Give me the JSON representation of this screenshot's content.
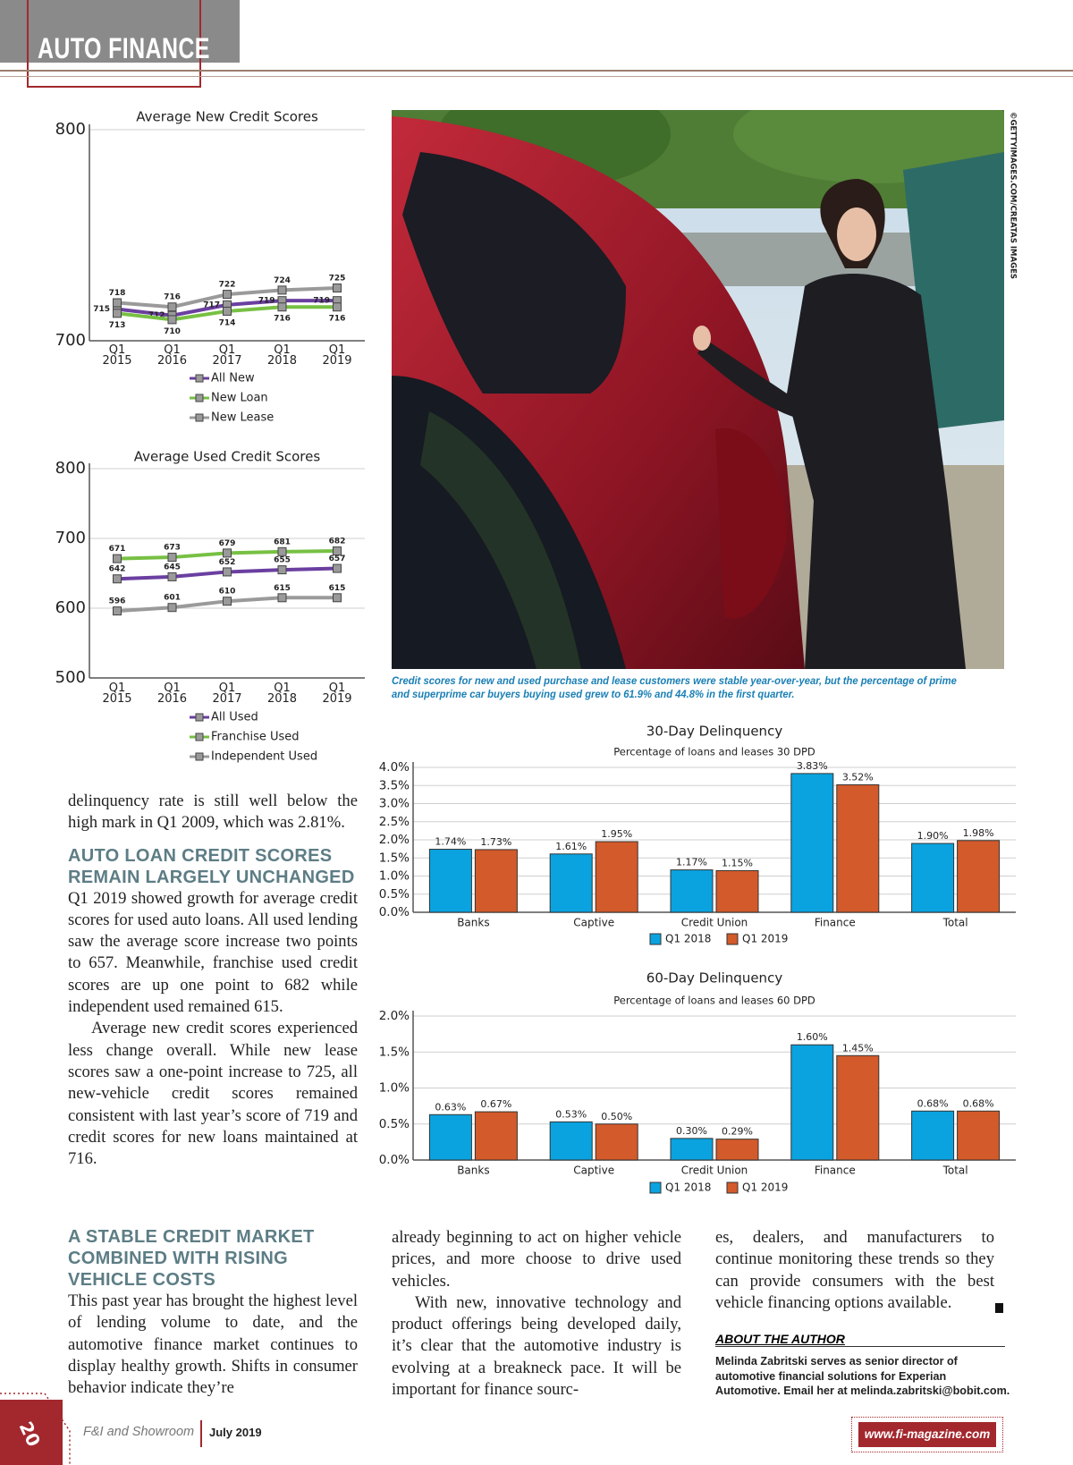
{
  "header": {
    "section": "AUTO FINANCE"
  },
  "chart_data": [
    {
      "type": "line",
      "title": "Average New Credit Scores",
      "categories": [
        "Q1 2015",
        "Q1 2016",
        "Q1 2017",
        "Q1 2018",
        "Q1 2019"
      ],
      "series": [
        {
          "name": "All New",
          "color": "#6b3fa0",
          "values": [
            715,
            712,
            717,
            719,
            719
          ]
        },
        {
          "name": "New Loan",
          "color": "#77c043",
          "values": [
            713,
            710,
            714,
            716,
            716
          ]
        },
        {
          "name": "New Lease",
          "color": "#9a9a9a",
          "values": [
            718,
            716,
            722,
            724,
            725
          ]
        }
      ],
      "ylim": [
        700,
        800
      ],
      "yticks": [
        700,
        800
      ],
      "grid": true
    },
    {
      "type": "line",
      "title": "Average Used Credit Scores",
      "categories": [
        "Q1 2015",
        "Q1 2016",
        "Q1 2017",
        "Q1 2018",
        "Q1 2019"
      ],
      "series": [
        {
          "name": "All Used",
          "color": "#6b3fa0",
          "values": [
            642,
            645,
            652,
            655,
            657
          ]
        },
        {
          "name": "Franchise Used",
          "color": "#77c043",
          "values": [
            671,
            673,
            679,
            681,
            682
          ]
        },
        {
          "name": "Independent Used",
          "color": "#9a9a9a",
          "values": [
            596,
            601,
            610,
            615,
            615
          ]
        }
      ],
      "ylim": [
        500,
        800
      ],
      "yticks": [
        500,
        600,
        700,
        800
      ],
      "grid": true
    },
    {
      "type": "bar",
      "title": "30-Day Delinquency",
      "subtitle": "Percentage of loans and leases 30 DPD",
      "categories": [
        "Banks",
        "Captive",
        "Credit Union",
        "Finance",
        "Total"
      ],
      "series": [
        {
          "name": "Q1 2018",
          "color": "#0aa3e0",
          "values": [
            1.74,
            1.61,
            1.17,
            3.83,
            1.9
          ],
          "value_labels": [
            "1.74%",
            "1.61%",
            "1.17%",
            "3.83%",
            "1.90%"
          ]
        },
        {
          "name": "Q1 2019",
          "color": "#d35a2a",
          "values": [
            1.73,
            1.95,
            1.15,
            3.52,
            1.98
          ],
          "value_labels": [
            "1.73%",
            "1.95%",
            "1.15%",
            "3.52%",
            "1.98%"
          ]
        }
      ],
      "ylim": [
        0,
        4
      ],
      "yticks": [
        {
          "value": 0,
          "label": "0.0%"
        },
        {
          "value": 0.5,
          "label": "0.5%"
        },
        {
          "value": 1,
          "label": "1.0%"
        },
        {
          "value": 1.5,
          "label": "1.5%"
        },
        {
          "value": 2,
          "label": "2.0%"
        },
        {
          "value": 2.5,
          "label": "2.5%"
        },
        {
          "value": 3,
          "label": "3.0%"
        },
        {
          "value": 3.5,
          "label": "3.5%"
        },
        {
          "value": 4,
          "label": "4.0%"
        }
      ],
      "grid": true,
      "legend": "bottom"
    },
    {
      "type": "bar",
      "title": "60-Day Delinquency",
      "subtitle": "Percentage of loans and leases 60 DPD",
      "categories": [
        "Banks",
        "Captive",
        "Credit Union",
        "Finance",
        "Total"
      ],
      "series": [
        {
          "name": "Q1 2018",
          "color": "#0aa3e0",
          "values": [
            0.63,
            0.53,
            0.3,
            1.6,
            0.68
          ],
          "value_labels": [
            "0.63%",
            "0.53%",
            "0.30%",
            "1.60%",
            "0.68%"
          ]
        },
        {
          "name": "Q1 2019",
          "color": "#d35a2a",
          "values": [
            0.67,
            0.5,
            0.29,
            1.45,
            0.68
          ],
          "value_labels": [
            "0.67%",
            "0.50%",
            "0.29%",
            "1.45%",
            "0.68%"
          ]
        }
      ],
      "ylim": [
        0,
        2
      ],
      "yticks": [
        {
          "value": 0,
          "label": "0.0%"
        },
        {
          "value": 0.5,
          "label": "0.5%"
        },
        {
          "value": 1,
          "label": "1.0%"
        },
        {
          "value": 1.5,
          "label": "1.5%"
        },
        {
          "value": 2,
          "label": "2.0%"
        }
      ],
      "grid": true,
      "legend": "bottom"
    }
  ],
  "photo": {
    "credit": "©GETTYIMAGES.COM/CREATAS IMAGES",
    "caption": "Credit scores for new and used purchase and lease customers were stable year-over-year, but the percentage of prime and superprime car buyers buying used grew to 61.9% and 44.8% in the first quarter."
  },
  "article": {
    "intro": "delinquency rate is still well below the high mark in Q1 2009, which was 2.81%.",
    "sections": [
      {
        "heading": "AUTO LOAN CREDIT SCORES REMAIN LARGELY UNCHANGED",
        "paragraphs": [
          "Q1 2019 showed growth for average credit scores for used auto loans. All used lending saw the average score increase two points to 657. Meanwhile, franchise used credit scores are up one point to 682 while independent used remained 615.",
          "Average new credit scores experienced less change overall. While new lease scores saw a one-point increase to 725, all new-vehicle credit scores remained consistent with last year’s score of 719 and credit scores for new loans maintained at 716."
        ]
      },
      {
        "heading": "A STABLE CREDIT MARKET COMBINED WITH RISING VEHICLE COSTS",
        "columns": [
          [
            "This past year has brought the highest level of lending volume to date, and the automotive finance market continues to display healthy growth. Shifts in consumer behavior indicate they’re"
          ],
          [
            "already beginning to act on higher vehicle prices, and more choose to drive used vehicles.",
            "With new, innovative technology and product offerings being developed daily, it’s clear that the automotive industry is evolving at a breakneck pace. It will be important for finance sourc-"
          ],
          [
            "es, dealers, and manufacturers to continue monitoring these trends so they can provide consumers with the best vehicle financing options available."
          ]
        ]
      }
    ]
  },
  "author": {
    "heading": "ABOUT THE AUTHOR",
    "bio": "Melinda Zabritski serves as senior director of automotive financial solutions for Experian Automotive. Email her at melinda.zabritski@bobit.com."
  },
  "footer": {
    "page": 20,
    "publication": "F&I and Showroom",
    "issue": "July 2019",
    "url": "www.fi-magazine.com"
  }
}
